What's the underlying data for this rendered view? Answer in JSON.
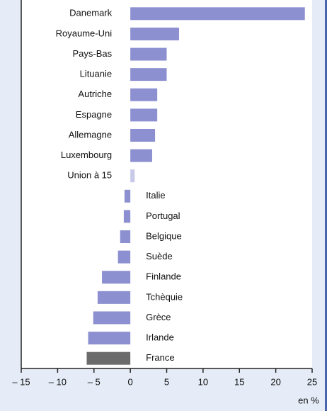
{
  "chart_data": {
    "type": "barh",
    "categories": [
      "Danemark",
      "Royaume-Uni",
      "Pays-Bas",
      "Lituanie",
      "Autriche",
      "Espagne",
      "Allemagne",
      "Luxembourg",
      "Union à 15",
      "Italie",
      "Portugal",
      "Belgique",
      "Suède",
      "Finlande",
      "Tchèquie",
      "Grèce",
      "Irlande",
      "France"
    ],
    "values": [
      24.0,
      6.7,
      5.0,
      5.0,
      3.7,
      3.7,
      3.4,
      3.0,
      0.6,
      -0.8,
      -0.9,
      -1.4,
      -1.7,
      -3.9,
      -4.5,
      -5.1,
      -5.8,
      -6.0
    ],
    "colors": [
      "#8c8fd0",
      "#8c8fd0",
      "#8c8fd0",
      "#8c8fd0",
      "#8c8fd0",
      "#8c8fd0",
      "#8c8fd0",
      "#8c8fd0",
      "#c9cae9",
      "#8c8fd0",
      "#8c8fd0",
      "#8c8fd0",
      "#8c8fd0",
      "#8c8fd0",
      "#8c8fd0",
      "#8c8fd0",
      "#8c8fd0",
      "#6b6b6b"
    ],
    "xlim": [
      -15,
      25
    ],
    "xticks": [
      {
        "value": -15,
        "label": "– 15"
      },
      {
        "value": -10,
        "label": "– 10"
      },
      {
        "value": -5,
        "label": "– 5"
      },
      0,
      5,
      10,
      15,
      20,
      25
    ],
    "x_unit_label": "en %"
  }
}
